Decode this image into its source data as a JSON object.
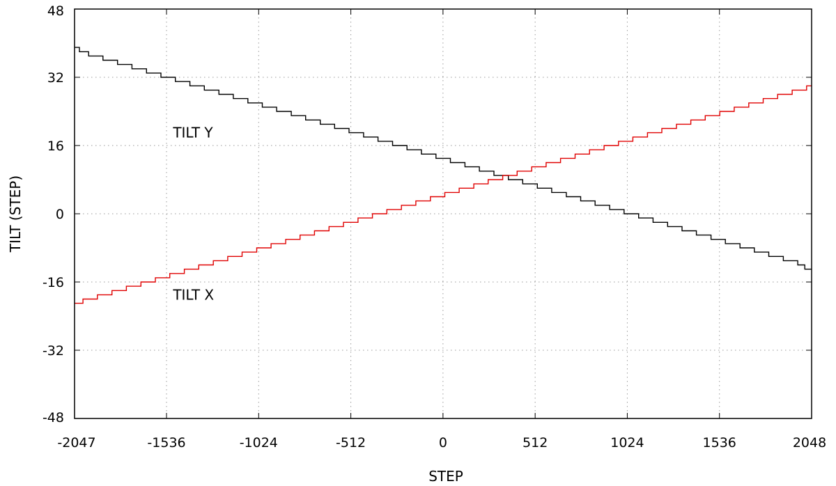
{
  "chart_data": {
    "type": "line",
    "step_style": true,
    "title": "",
    "xlabel": "STEP",
    "ylabel": "TILT (STEP)",
    "xlim": [
      -2047,
      2048
    ],
    "ylim": [
      -48,
      48
    ],
    "xticks": [
      -2047,
      -1536,
      -1024,
      -512,
      0,
      512,
      1024,
      1536,
      2048
    ],
    "yticks": [
      -48,
      -32,
      -16,
      0,
      16,
      32,
      48
    ],
    "grid": true,
    "legend": "none",
    "annotations": [
      {
        "text": "TILT Y",
        "x": -1500,
        "y": 19
      },
      {
        "text": "TILT X",
        "x": -1500,
        "y": -19
      }
    ],
    "series": [
      {
        "color": "#000000",
        "x": [
          -2047,
          -2020,
          -1969,
          -1889,
          -1808,
          -1728,
          -1647,
          -1567,
          -1487,
          -1406,
          -1326,
          -1245,
          -1165,
          -1084,
          -1004,
          -924,
          -843,
          -763,
          -682,
          -602,
          -522,
          -441,
          -361,
          -280,
          -200,
          -120,
          -39,
          41,
          122,
          202,
          283,
          363,
          443,
          524,
          604,
          685,
          765,
          845,
          926,
          1006,
          1087,
          1167,
          1248,
          1328,
          1408,
          1489,
          1569,
          1650,
          1730,
          1810,
          1891,
          1971,
          2010,
          2048
        ],
        "y": [
          39,
          38,
          37,
          36,
          35,
          34,
          33,
          32,
          31,
          30,
          29,
          28,
          27,
          26,
          25,
          24,
          23,
          22,
          21,
          20,
          19,
          18,
          17,
          16,
          15,
          14,
          13,
          12,
          11,
          10,
          9,
          8,
          7,
          6,
          5,
          4,
          3,
          2,
          1,
          0,
          -1,
          -2,
          -3,
          -4,
          -5,
          -6,
          -7,
          -8,
          -9,
          -10,
          -11,
          -12,
          -13,
          -13
        ]
      },
      {
        "color": "#e00000",
        "x": [
          -2047,
          -2000,
          -1920,
          -1839,
          -1759,
          -1678,
          -1598,
          -1518,
          -1437,
          -1357,
          -1276,
          -1196,
          -1116,
          -1035,
          -955,
          -874,
          -794,
          -714,
          -633,
          -553,
          -472,
          -392,
          -312,
          -231,
          -151,
          -70,
          10,
          90,
          171,
          251,
          332,
          412,
          493,
          573,
          653,
          734,
          814,
          895,
          975,
          1055,
          1136,
          1216,
          1297,
          1377,
          1457,
          1538,
          1618,
          1699,
          1779,
          1859,
          1940,
          2020,
          2048
        ],
        "y": [
          -21,
          -20,
          -19,
          -18,
          -17,
          -16,
          -15,
          -14,
          -13,
          -12,
          -11,
          -10,
          -9,
          -8,
          -7,
          -6,
          -5,
          -4,
          -3,
          -2,
          -1,
          0,
          1,
          2,
          3,
          4,
          5,
          6,
          7,
          8,
          9,
          10,
          11,
          12,
          13,
          14,
          15,
          16,
          17,
          18,
          19,
          20,
          21,
          22,
          23,
          24,
          25,
          26,
          27,
          28,
          29,
          30,
          30
        ]
      }
    ]
  }
}
